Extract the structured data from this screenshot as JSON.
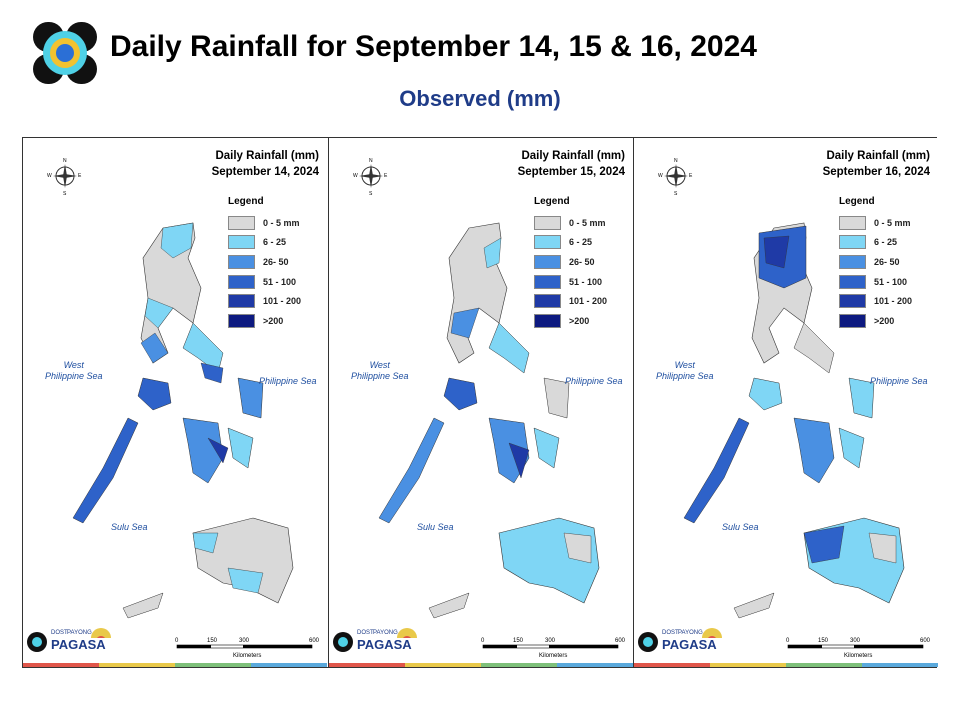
{
  "header": {
    "title": "Daily Rainfall for September 14, 15 & 16, 2024",
    "subtitle": "Observed (mm)"
  },
  "legend": {
    "title": "Legend",
    "items": [
      {
        "label": "0 - 5 mm",
        "color": "#d9d9d9"
      },
      {
        "label": "6 - 25",
        "color": "#7fd6f5"
      },
      {
        "label": "26- 50",
        "color": "#4a90e2"
      },
      {
        "label": "51 - 100",
        "color": "#2e62c9"
      },
      {
        "label": "101 - 200",
        "color": "#1f3aa6"
      },
      {
        "label": ">200",
        "color": "#0d1a80"
      }
    ]
  },
  "panels": [
    {
      "title_line1": "Daily Rainfall (mm)",
      "title_line2": "September 14, 2024"
    },
    {
      "title_line1": "Daily Rainfall (mm)",
      "title_line2": "September 15, 2024"
    },
    {
      "title_line1": "Daily Rainfall (mm)",
      "title_line2": "September 16, 2024"
    }
  ],
  "seas": {
    "west": "West Philippine Sea",
    "east": "Philippine Sea",
    "sulu": "Sulu Sea"
  },
  "scale": {
    "ticks": [
      "0",
      "150",
      "300",
      "600"
    ],
    "unit": "Kilometers"
  },
  "compass": {
    "n": "N",
    "s": "S",
    "e": "E",
    "w": "W"
  },
  "branding": {
    "name": "PAGASA",
    "tag": "DOST",
    "sub": "PAYONG"
  },
  "colors": {
    "grey": "#d9d9d9",
    "light": "#7fd6f5",
    "mid": "#4a90e2",
    "strong": "#2e62c9",
    "heavy": "#1f3aa6",
    "extreme": "#0d1a80",
    "bar": [
      "#e0564a",
      "#e9c94a",
      "#7ec07a",
      "#5aa9dc"
    ]
  }
}
